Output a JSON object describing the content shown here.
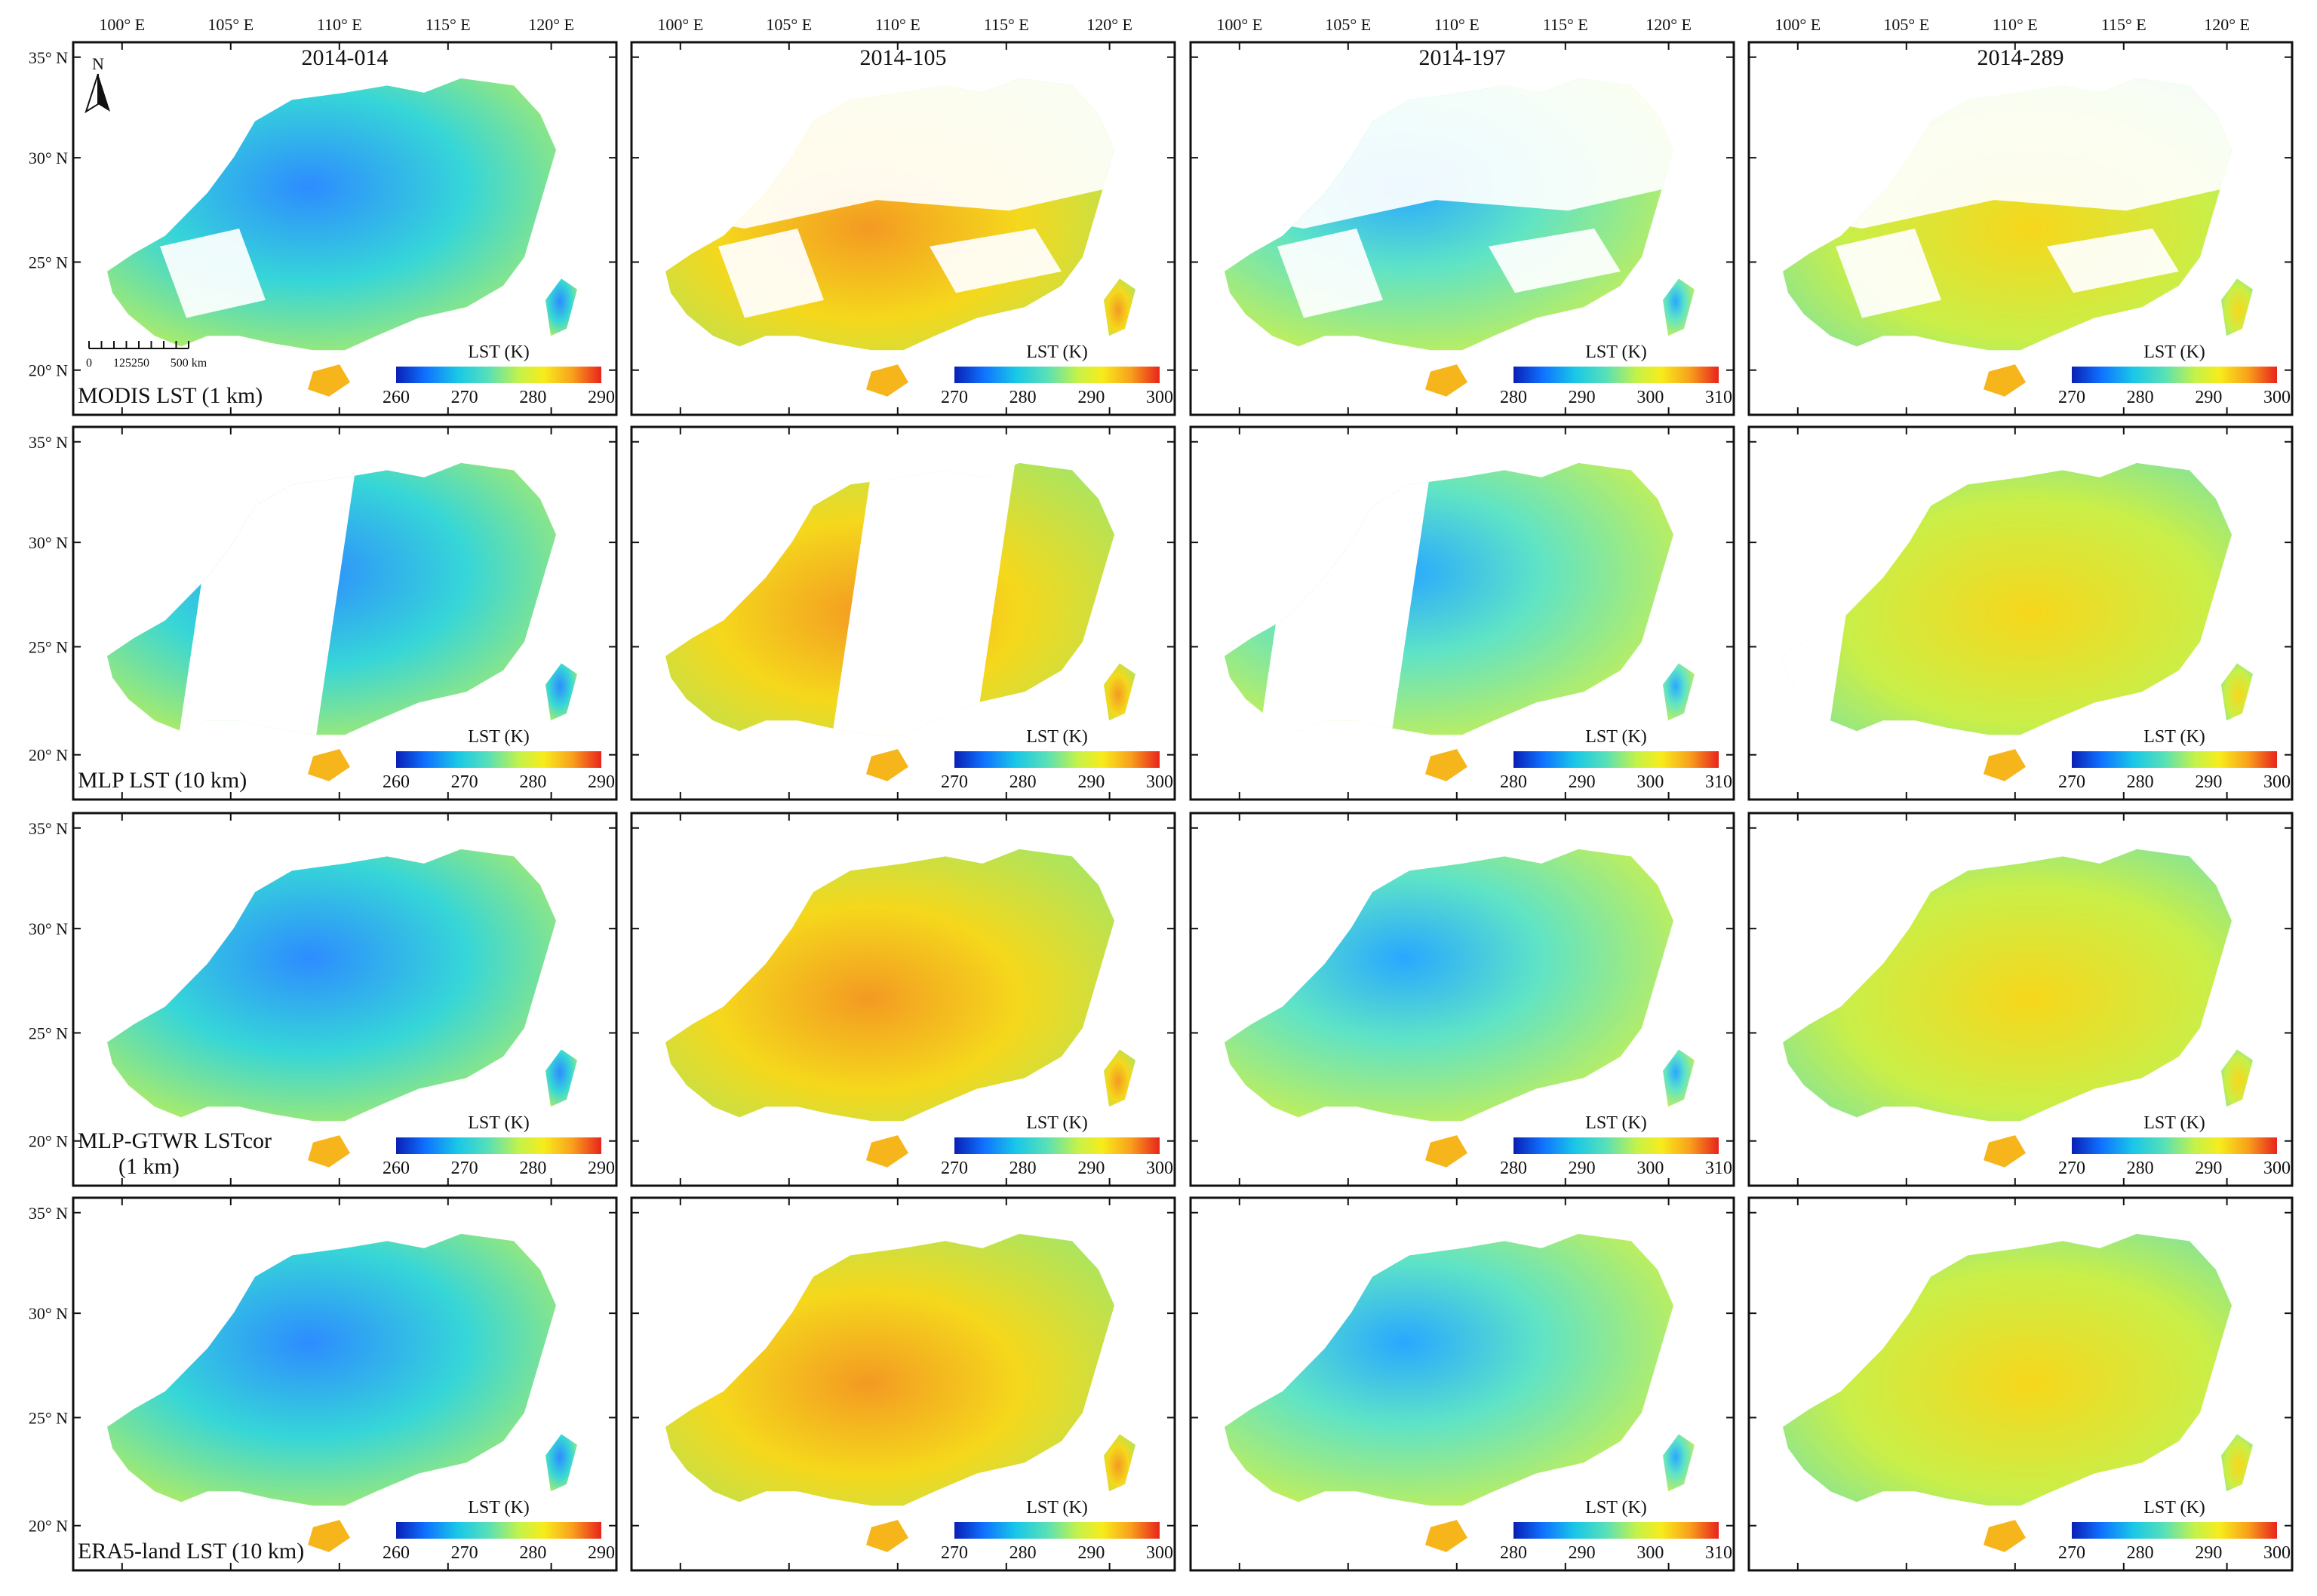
{
  "figure": {
    "top_lon_labels": [
      "100° E",
      "105° E",
      "110° E",
      "115° E",
      "120° E"
    ],
    "left_lat_labels": [
      "35° N",
      "30° N",
      "25° N",
      "20° N"
    ],
    "dates": [
      "2014-014",
      "2014-105",
      "2014-197",
      "2014-289"
    ],
    "rows": [
      {
        "label_lines": [
          "MODIS LST (1 km)"
        ]
      },
      {
        "label_lines": [
          "MLP LST (10 km)"
        ]
      },
      {
        "label_lines": [
          "MLP-GTWR LSTcor",
          "(1 km)"
        ]
      },
      {
        "label_lines": [
          "ERA5-land LST (10 km)"
        ]
      }
    ],
    "colorbar": {
      "title": "LST (K)",
      "ticks_by_column": [
        [
          "260",
          "270",
          "280",
          "290"
        ],
        [
          "270",
          "280",
          "290",
          "300"
        ],
        [
          "280",
          "290",
          "300",
          "310"
        ],
        [
          "270",
          "280",
          "290",
          "300"
        ]
      ],
      "colors": [
        "#0a1fb4",
        "#0f70ff",
        "#19c7e8",
        "#57e0b8",
        "#c4f24a",
        "#f7ec1c",
        "#f8a01c",
        "#e8241c"
      ]
    },
    "north_arrow_label": "N",
    "scale_bar": {
      "labels": [
        "0",
        "125250",
        "500 km"
      ]
    }
  }
}
